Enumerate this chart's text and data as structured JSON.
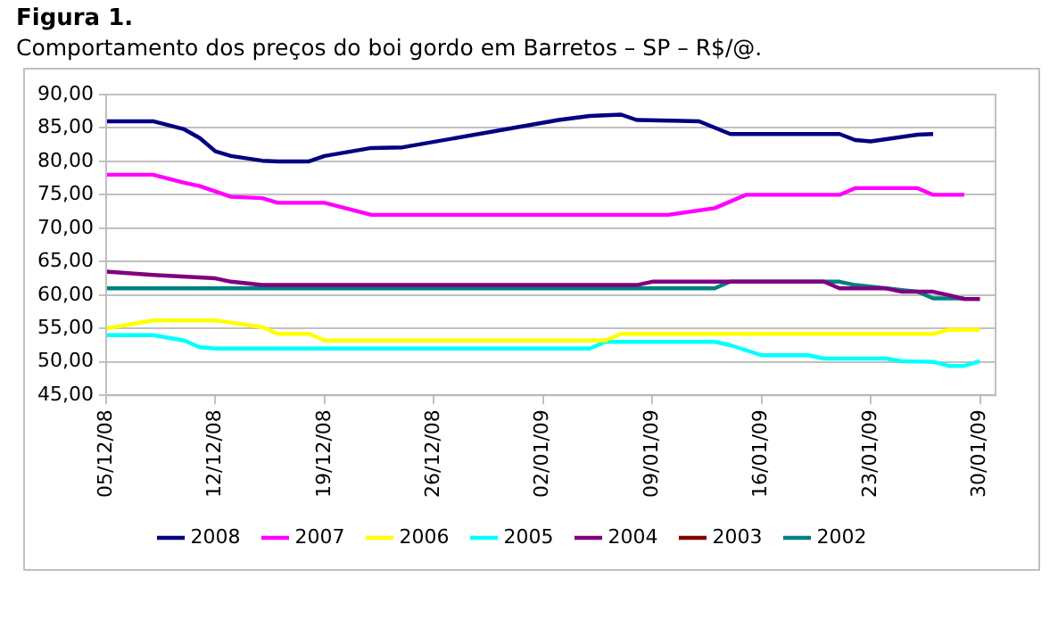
{
  "chart_data": {
    "type": "line",
    "title": "Figura 1.",
    "subtitle": "Comportamento dos preços do boi gordo em Barretos – SP – R$/@.",
    "xlim": [
      "2008-12-05",
      "2009-01-31"
    ],
    "xticks": [
      {
        "value": "2008-12-05",
        "label": "05/12/08"
      },
      {
        "value": "2008-12-12",
        "label": "12/12/08"
      },
      {
        "value": "2008-12-19",
        "label": "19/12/08"
      },
      {
        "value": "2008-12-26",
        "label": "26/12/08"
      },
      {
        "value": "2009-01-02",
        "label": "02/01/09"
      },
      {
        "value": "2009-01-09",
        "label": "09/01/09"
      },
      {
        "value": "2009-01-16",
        "label": "16/01/09"
      },
      {
        "value": "2009-01-23",
        "label": "23/01/09"
      },
      {
        "value": "2009-01-30",
        "label": "30/01/09"
      }
    ],
    "ylim": [
      45,
      90
    ],
    "yticks": [
      {
        "value": 45,
        "label": "45,00"
      },
      {
        "value": 50,
        "label": "50,00"
      },
      {
        "value": 55,
        "label": "55,00"
      },
      {
        "value": 60,
        "label": "60,00"
      },
      {
        "value": 65,
        "label": "65,00"
      },
      {
        "value": 70,
        "label": "70,00"
      },
      {
        "value": 75,
        "label": "75,00"
      },
      {
        "value": 80,
        "label": "80,00"
      },
      {
        "value": 85,
        "label": "85,00"
      },
      {
        "value": 90,
        "label": "90,00"
      }
    ],
    "grid": "y",
    "legend": "bottom",
    "series": [
      {
        "name": "2008",
        "color": "#000080",
        "x": [
          "2008-12-05",
          "2008-12-08",
          "2008-12-10",
          "2008-12-11",
          "2008-12-12",
          "2008-12-13",
          "2008-12-15",
          "2008-12-16",
          "2008-12-18",
          "2008-12-19",
          "2008-12-22",
          "2008-12-24",
          "2009-01-03",
          "2009-01-05",
          "2009-01-07",
          "2009-01-08",
          "2009-01-12",
          "2009-01-14",
          "2009-01-21",
          "2009-01-22",
          "2009-01-23",
          "2009-01-26",
          "2009-01-27"
        ],
        "values": [
          86,
          86,
          84.8,
          83.5,
          81.5,
          80.8,
          80.1,
          80,
          80,
          80.8,
          82,
          82.1,
          86.2,
          86.8,
          87,
          86.2,
          86,
          84.1,
          84.1,
          83.2,
          83,
          84,
          84.1
        ]
      },
      {
        "name": "2007",
        "color": "#ff00ff",
        "x": [
          "2008-12-05",
          "2008-12-08",
          "2008-12-10",
          "2008-12-11",
          "2008-12-12",
          "2008-12-13",
          "2008-12-15",
          "2008-12-16",
          "2008-12-19",
          "2008-12-22",
          "2009-01-10",
          "2009-01-13",
          "2009-01-15",
          "2009-01-21",
          "2009-01-22",
          "2009-01-26",
          "2009-01-27",
          "2009-01-29"
        ],
        "values": [
          78,
          78,
          76.8,
          76.3,
          75.5,
          74.7,
          74.5,
          73.8,
          73.8,
          72,
          72,
          73,
          75,
          75,
          76,
          76,
          75,
          75
        ]
      },
      {
        "name": "2006",
        "color": "#ffff00",
        "x": [
          "2008-12-05",
          "2008-12-08",
          "2008-12-12",
          "2008-12-15",
          "2008-12-16",
          "2008-12-18",
          "2008-12-19",
          "2009-01-06",
          "2009-01-07",
          "2009-01-27",
          "2009-01-28",
          "2009-01-30"
        ],
        "values": [
          55,
          56.2,
          56.2,
          55.2,
          54.2,
          54.2,
          53.2,
          53.2,
          54.2,
          54.2,
          54.8,
          54.8
        ]
      },
      {
        "name": "2005",
        "color": "#00ffff",
        "x": [
          "2008-12-05",
          "2008-12-08",
          "2008-12-10",
          "2008-12-11",
          "2008-12-12",
          "2009-01-05",
          "2009-01-06",
          "2009-01-13",
          "2009-01-14",
          "2009-01-16",
          "2009-01-19",
          "2009-01-20",
          "2009-01-24",
          "2009-01-25",
          "2009-01-27",
          "2009-01-28",
          "2009-01-29",
          "2009-01-30"
        ],
        "values": [
          54,
          54,
          53.2,
          52.2,
          52,
          52,
          53,
          53,
          52.5,
          51,
          51,
          50.5,
          50.5,
          50.1,
          50,
          49.4,
          49.4,
          50.1
        ]
      },
      {
        "name": "2004",
        "color": "#800080",
        "x": [
          "2008-12-05",
          "2008-12-08",
          "2008-12-12",
          "2008-12-13",
          "2008-12-15",
          "2009-01-08",
          "2009-01-09",
          "2009-01-20",
          "2009-01-21",
          "2009-01-24",
          "2009-01-25",
          "2009-01-27",
          "2009-01-28",
          "2009-01-29",
          "2009-01-30"
        ],
        "values": [
          63.5,
          63,
          62.5,
          62,
          61.5,
          61.5,
          62,
          62,
          61,
          61,
          60.5,
          60.5,
          60,
          59.4,
          59.4
        ]
      },
      {
        "name": "2003",
        "color": "#800000"
      },
      {
        "name": "2002",
        "color": "#008080",
        "x": [
          "2008-12-05",
          "2009-01-13",
          "2009-01-14",
          "2009-01-21",
          "2009-01-22",
          "2009-01-24",
          "2009-01-26",
          "2009-01-27",
          "2009-01-29"
        ],
        "values": [
          61,
          61,
          62,
          62,
          61.5,
          61,
          60.5,
          59.5,
          59.5
        ]
      }
    ]
  }
}
